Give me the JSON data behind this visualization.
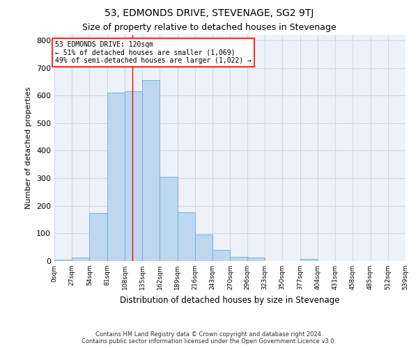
{
  "title": "53, EDMONDS DRIVE, STEVENAGE, SG2 9TJ",
  "subtitle": "Size of property relative to detached houses in Stevenage",
  "xlabel": "Distribution of detached houses by size in Stevenage",
  "ylabel": "Number of detached properties",
  "bar_values": [
    5,
    12,
    175,
    610,
    615,
    655,
    305,
    177,
    97,
    40,
    15,
    12,
    0,
    0,
    7,
    0,
    0,
    0,
    0,
    0
  ],
  "bin_edges": [
    0,
    27,
    54,
    81,
    108,
    135,
    162,
    189,
    216,
    243,
    270,
    296,
    323,
    350,
    377,
    404,
    431,
    458,
    485,
    512,
    539
  ],
  "tick_labels": [
    "0sqm",
    "27sqm",
    "54sqm",
    "81sqm",
    "108sqm",
    "135sqm",
    "162sqm",
    "189sqm",
    "216sqm",
    "243sqm",
    "270sqm",
    "296sqm",
    "323sqm",
    "350sqm",
    "377sqm",
    "404sqm",
    "431sqm",
    "458sqm",
    "485sqm",
    "512sqm",
    "539sqm"
  ],
  "bar_color": "#bdd7ee",
  "bar_edge_color": "#6baed6",
  "grid_color": "#d0d8e8",
  "background_color": "#edf2fa",
  "red_line_x": 120,
  "annotation_text_line1": "53 EDMONDS DRIVE: 120sqm",
  "annotation_text_line2": "← 51% of detached houses are smaller (1,069)",
  "annotation_text_line3": "49% of semi-detached houses are larger (1,022) →",
  "ylim": [
    0,
    820
  ],
  "yticks": [
    0,
    100,
    200,
    300,
    400,
    500,
    600,
    700,
    800
  ],
  "title_fontsize": 10,
  "subtitle_fontsize": 9,
  "footer_line1": "Contains HM Land Registry data © Crown copyright and database right 2024.",
  "footer_line2": "Contains public sector information licensed under the Open Government Licence v3.0."
}
